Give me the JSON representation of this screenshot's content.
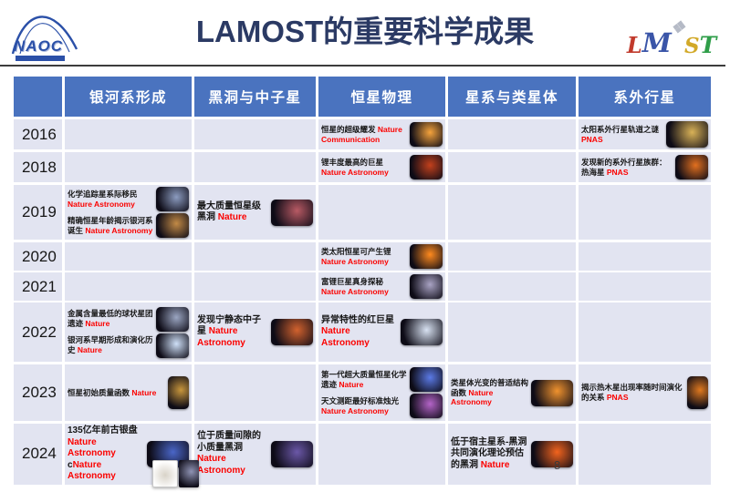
{
  "theme": {
    "header-blue": "#4a73bf",
    "row-bg": "#e2e4f1",
    "title-navy": "#2b3a64",
    "journal-red": "#fb0200",
    "line-dark": "#3c3c3c",
    "naoc-blue": "#2b50a8"
  },
  "header": {
    "naoc_label": "NAOC",
    "title": "LAMOST的重要科学成果",
    "lamost_letters": [
      {
        "ch": "L",
        "color": "#c13a2c",
        "size": 24
      },
      {
        "ch": "M",
        "color": "#3a55a8",
        "size": 29
      },
      {
        "ch": "❖",
        "color": "#b5bac6",
        "size": 18,
        "raise": true
      },
      {
        "ch": "S",
        "color": "#d2a928",
        "size": 23
      },
      {
        "ch": "T",
        "color": "#2f9e49",
        "size": 25
      }
    ]
  },
  "table": {
    "columns": [
      "银河系形成",
      "黑洞与中子星",
      "恒星物理",
      "星系与类星体",
      "系外行星"
    ],
    "rows": [
      {
        "year": "2016",
        "cells": [
          [],
          [],
          [
            {
              "title": "恒星的超级耀发",
              "journal": "Nature Communication",
              "color": "#f5a33c"
            }
          ],
          [],
          [
            {
              "title": "太阳系外行星轨道之谜",
              "journal": "PNAS",
              "color": "#d9b257",
              "shape": "wide"
            }
          ]
        ]
      },
      {
        "year": "2018",
        "cells": [
          [],
          [],
          [
            {
              "title": "锂丰度最高的巨星",
              "journal": "Nature Astronomy",
              "color": "#c2401c"
            }
          ],
          [],
          [
            {
              "title": "发现新的系外行星族群：热海星",
              "journal": "PNAS",
              "color": "#e2701f"
            }
          ]
        ]
      },
      {
        "year": "2019",
        "cells": [
          [
            {
              "title": "化学追踪星系际移民",
              "journal": "Nature Astronomy",
              "color": "#8c9cc0"
            },
            {
              "title": "精确恒星年龄揭示银河系诞生",
              "journal": "Nature Astronomy",
              "color": "#c28a46"
            }
          ],
          [
            {
              "title": "最大质量恒星级黑洞",
              "journal": "Nature",
              "color": "#b85a64",
              "shape": "wide",
              "big": true
            }
          ],
          [],
          [],
          []
        ]
      },
      {
        "year": "2020",
        "cells": [
          [],
          [],
          [
            {
              "title": "类太阳恒星可产生锂",
              "journal": "Nature Astronomy",
              "color": "#ff8a1e"
            }
          ],
          [],
          []
        ]
      },
      {
        "year": "2021",
        "cells": [
          [],
          [],
          [
            {
              "title": "富锂巨星真身探秘",
              "journal": "Nature Astronomy",
              "color": "#a9a3c4"
            }
          ],
          [],
          []
        ]
      },
      {
        "year": "2022",
        "cells": [
          [
            {
              "title": "金属含量最低的球状星团遗迹",
              "journal": "Nature",
              "color": "#9ba6c2"
            },
            {
              "title": "银河系早期形成和演化历史",
              "journal": "Nature",
              "color": "#cfe0f8"
            }
          ],
          [
            {
              "title": "发现宁静态中子星",
              "journal": "Nature Astronomy",
              "color": "#d2622e",
              "shape": "wide",
              "big": true
            }
          ],
          [
            {
              "title": "异常特性的红巨星",
              "journal": "Nature Astronomy",
              "color": "#d8e2f2",
              "shape": "wide",
              "big": true
            }
          ],
          [],
          []
        ]
      },
      {
        "year": "2023",
        "cells": [
          [
            {
              "title": "恒星初始质量函数",
              "journal": "Nature",
              "color": "#c8963c",
              "shape": "tall"
            }
          ],
          [],
          [
            {
              "title": "第一代超大质量恒星化学遗迹",
              "journal": "Nature",
              "color": "#5b7ae6"
            },
            {
              "title": "天文测距最好标准烛光",
              "journal": "Nature Astronomy",
              "color": "#b464c8"
            }
          ],
          [
            {
              "title": "类星体光变的普适结构函数",
              "journal": "Nature Astronomy",
              "color": "#f0922e",
              "shape": "wide"
            }
          ],
          [
            {
              "title": "揭示热木星出现率随时间演化的关系",
              "journal": "PNAS",
              "color": "#e0791f",
              "shape": "tall"
            }
          ]
        ]
      },
      {
        "year": "2024",
        "cells": [
          [
            {
              "title": "135亿年前古银盘",
              "journal": "Nature Astronomy",
              "journal2_prefix": "c",
              "journal2": "Nature Astronomy",
              "color": "#4a66c8",
              "shape": "wide",
              "big": true,
              "extra_thumbs": [
                {
                  "bg": "#ffffff",
                  "color": "#8a7a5a",
                  "w": 26,
                  "h": 28,
                  "border": "#c8c8c8"
                },
                {
                  "bg": "#05050a",
                  "color": "#8f93b4",
                  "w": 22,
                  "h": 30
                }
              ]
            }
          ],
          [
            {
              "title": "位于质量间隙的小质量黑洞",
              "journal": "Nature Astronomy",
              "color": "#6b58a8",
              "shape": "wide",
              "big": true
            }
          ],
          [],
          [
            {
              "title": "低于宿主星系-黑洞共同演化理论预估的黑洞",
              "journal": "Nature",
              "color": "#f2641e",
              "shape": "wide",
              "big": true
            }
          ],
          []
        ]
      }
    ]
  },
  "footer": {
    "page_number": "8"
  }
}
